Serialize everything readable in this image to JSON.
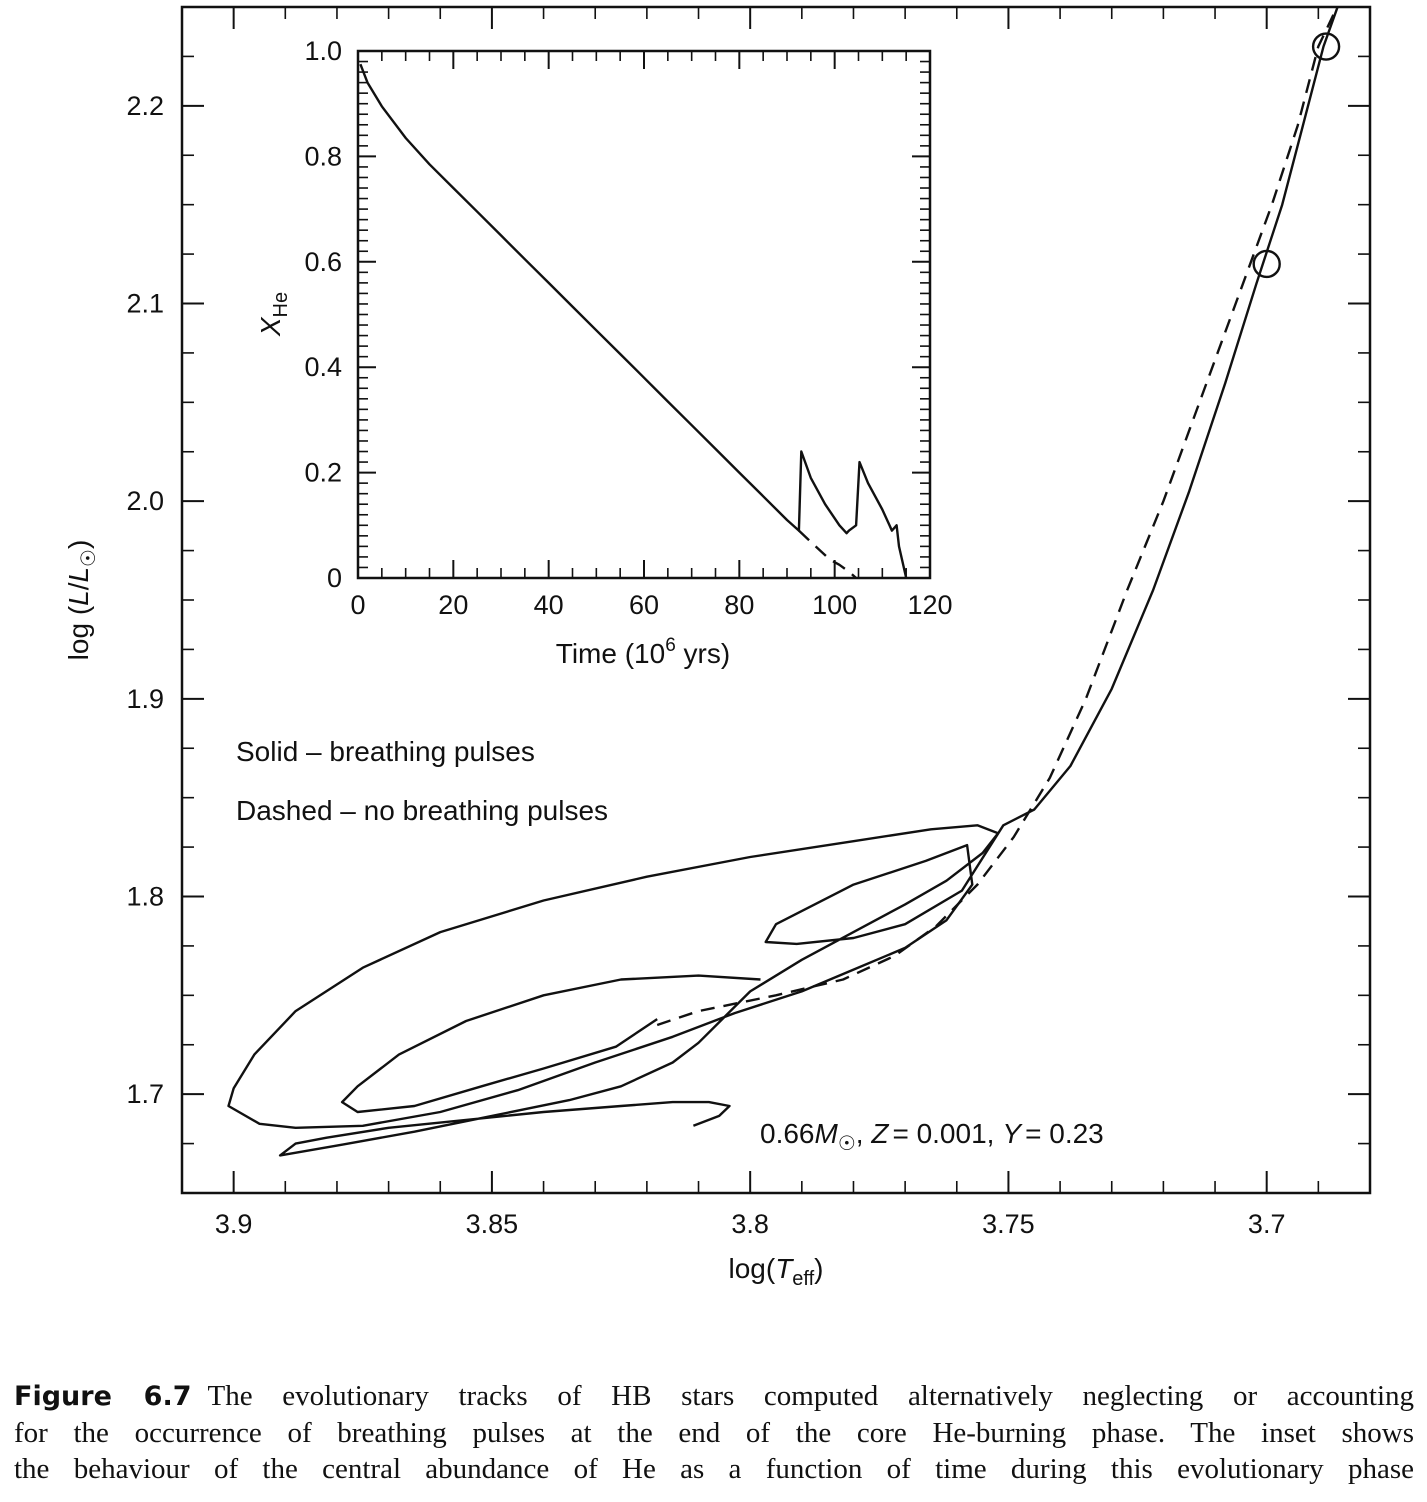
{
  "chart_data": [
    {
      "type": "line",
      "name": "hr-diagram",
      "xlabel": "log(Teff)",
      "ylabel": "log (L/L☉)",
      "xlim": [
        3.91,
        3.68
      ],
      "ylim": [
        1.65,
        2.25
      ],
      "x_reversed": true,
      "x_ticks": [
        3.9,
        3.85,
        3.8,
        3.75,
        3.7
      ],
      "x_tick_labels": [
        "3.9",
        "3.85",
        "3.8",
        "3.75",
        "3.7"
      ],
      "y_ticks": [
        1.7,
        1.8,
        1.9,
        2.0,
        2.1,
        2.2
      ],
      "y_tick_labels": [
        "1.7",
        "1.8",
        "1.9",
        "2.0",
        "2.1",
        "2.2"
      ],
      "legend": {
        "placement": "left-middle",
        "solid": "Solid – breathing pulses",
        "dashed": "Dashed – no breathing pulses"
      },
      "annotation": {
        "mass": "0.66",
        "mass_unit": "M",
        "z_label": "Z",
        "z_value": "= 0.001,",
        "y_label": "Y",
        "y_value": "= 0.23"
      },
      "markers": [
        {
          "x": 3.7,
          "y": 2.12
        },
        {
          "x": 3.6885,
          "y": 2.23
        }
      ],
      "series": [
        {
          "style": "solid",
          "points": [
            [
              3.811,
              1.684
            ],
            [
              3.806,
              1.689
            ],
            [
              3.804,
              1.694
            ],
            [
              3.808,
              1.696
            ],
            [
              3.815,
              1.696
            ],
            [
              3.825,
              1.694
            ],
            [
              3.84,
              1.691
            ],
            [
              3.855,
              1.687
            ],
            [
              3.87,
              1.683
            ],
            [
              3.882,
              1.678
            ],
            [
              3.888,
              1.675
            ],
            [
              3.891,
              1.669
            ],
            [
              3.88,
              1.674
            ],
            [
              3.865,
              1.681
            ],
            [
              3.85,
              1.689
            ],
            [
              3.835,
              1.697
            ],
            [
              3.825,
              1.704
            ],
            [
              3.815,
              1.716
            ],
            [
              3.81,
              1.726
            ],
            [
              3.805,
              1.739
            ],
            [
              3.8,
              1.752
            ],
            [
              3.79,
              1.768
            ],
            [
              3.78,
              1.782
            ],
            [
              3.77,
              1.796
            ],
            [
              3.762,
              1.808
            ],
            [
              3.755,
              1.822
            ],
            [
              3.752,
              1.832
            ],
            [
              3.756,
              1.836
            ],
            [
              3.765,
              1.834
            ],
            [
              3.78,
              1.828
            ],
            [
              3.8,
              1.82
            ],
            [
              3.82,
              1.81
            ],
            [
              3.84,
              1.798
            ],
            [
              3.86,
              1.782
            ],
            [
              3.875,
              1.764
            ],
            [
              3.888,
              1.742
            ],
            [
              3.896,
              1.72
            ],
            [
              3.9,
              1.703
            ],
            [
              3.901,
              1.694
            ],
            [
              3.895,
              1.685
            ],
            [
              3.888,
              1.683
            ],
            [
              3.875,
              1.684
            ],
            [
              3.86,
              1.691
            ],
            [
              3.845,
              1.702
            ],
            [
              3.83,
              1.716
            ],
            [
              3.815,
              1.729
            ],
            [
              3.803,
              1.741
            ],
            [
              3.79,
              1.752
            ],
            [
              3.78,
              1.763
            ],
            [
              3.77,
              1.774
            ],
            [
              3.762,
              1.788
            ],
            [
              3.757,
              1.806
            ],
            [
              3.758,
              1.826
            ],
            [
              3.766,
              1.818
            ],
            [
              3.78,
              1.806
            ],
            [
              3.795,
              1.786
            ],
            [
              3.797,
              1.777
            ],
            [
              3.791,
              1.776
            ],
            [
              3.78,
              1.779
            ],
            [
              3.77,
              1.786
            ],
            [
              3.759,
              1.803
            ],
            [
              3.751,
              1.836
            ],
            [
              3.745,
              1.844
            ],
            [
              3.738,
              1.866
            ],
            [
              3.73,
              1.905
            ],
            [
              3.722,
              1.955
            ],
            [
              3.715,
              2.005
            ],
            [
              3.708,
              2.06
            ],
            [
              3.702,
              2.11
            ],
            [
              3.697,
              2.15
            ],
            [
              3.693,
              2.19
            ],
            [
              3.689,
              2.23
            ],
            [
              3.686,
              2.252
            ]
          ]
        },
        {
          "style": "solid",
          "points": [
            [
              3.798,
              1.758
            ],
            [
              3.81,
              1.76
            ],
            [
              3.825,
              1.758
            ],
            [
              3.84,
              1.75
            ],
            [
              3.855,
              1.737
            ],
            [
              3.868,
              1.72
            ],
            [
              3.876,
              1.704
            ],
            [
              3.879,
              1.696
            ],
            [
              3.876,
              1.691
            ],
            [
              3.865,
              1.694
            ],
            [
              3.852,
              1.704
            ],
            [
              3.84,
              1.713
            ],
            [
              3.826,
              1.724
            ],
            [
              3.818,
              1.738
            ]
          ]
        },
        {
          "style": "dashed",
          "points": [
            [
              3.818,
              1.735
            ],
            [
              3.81,
              1.742
            ],
            [
              3.795,
              1.75
            ],
            [
              3.782,
              1.758
            ],
            [
              3.772,
              1.77
            ],
            [
              3.764,
              1.785
            ],
            [
              3.756,
              1.806
            ],
            [
              3.749,
              1.83
            ],
            [
              3.742,
              1.86
            ],
            [
              3.735,
              1.9
            ],
            [
              3.727,
              1.955
            ],
            [
              3.72,
              2.0
            ],
            [
              3.713,
              2.05
            ],
            [
              3.706,
              2.1
            ],
            [
              3.699,
              2.15
            ],
            [
              3.694,
              2.19
            ],
            [
              3.69,
              2.23
            ],
            [
              3.686,
              2.252
            ]
          ]
        }
      ]
    },
    {
      "type": "line",
      "name": "inset",
      "xlabel": "Time (10",
      "xlabel_sup": "6",
      "xlabel_tail": " yrs)",
      "ylabel": "X",
      "ylabel_sub": "He",
      "xlim": [
        0,
        120
      ],
      "ylim": [
        0,
        1.0
      ],
      "x_ticks": [
        0,
        20,
        40,
        60,
        80,
        100,
        120
      ],
      "x_tick_labels": [
        "0",
        "20",
        "40",
        "60",
        "80",
        "100",
        "120"
      ],
      "y_ticks": [
        0,
        0.2,
        0.4,
        0.6,
        0.8,
        1.0
      ],
      "y_tick_labels": [
        "0",
        "0.2",
        "0.4",
        "0.6",
        "0.8",
        "1.0"
      ],
      "series": [
        {
          "style": "solid",
          "points": [
            [
              0.5,
              0.975
            ],
            [
              2,
              0.94
            ],
            [
              5,
              0.895
            ],
            [
              10,
              0.835
            ],
            [
              15,
              0.785
            ],
            [
              20,
              0.74
            ],
            [
              25,
              0.695
            ],
            [
              30,
              0.65
            ],
            [
              35,
              0.605
            ],
            [
              40,
              0.56
            ],
            [
              45,
              0.515
            ],
            [
              50,
              0.47
            ],
            [
              55,
              0.425
            ],
            [
              60,
              0.38
            ],
            [
              65,
              0.335
            ],
            [
              70,
              0.29
            ],
            [
              75,
              0.245
            ],
            [
              80,
              0.2
            ],
            [
              85,
              0.155
            ],
            [
              90,
              0.11
            ],
            [
              92.5,
              0.09
            ],
            [
              93,
              0.24
            ],
            [
              95,
              0.19
            ],
            [
              98,
              0.14
            ],
            [
              101,
              0.1
            ],
            [
              102.5,
              0.085
            ],
            [
              103,
              0.09
            ],
            [
              104.5,
              0.1
            ],
            [
              105.2,
              0.22
            ],
            [
              107,
              0.18
            ],
            [
              110,
              0.13
            ],
            [
              111.5,
              0.1
            ],
            [
              112,
              0.09
            ],
            [
              112.5,
              0.095
            ],
            [
              113,
              0.1
            ],
            [
              113.5,
              0.06
            ],
            [
              115,
              0.0
            ]
          ]
        },
        {
          "style": "dashed",
          "points": [
            [
              92.5,
              0.09
            ],
            [
              96,
              0.06
            ],
            [
              99,
              0.035
            ],
            [
              101,
              0.025
            ],
            [
              103,
              0.012
            ],
            [
              104.5,
              0.0
            ]
          ]
        }
      ]
    }
  ],
  "caption": {
    "label": "Figure 6.7",
    "lines": [
      "The evolutionary tracks of HB stars computed alternatively neglecting or accounting",
      "for the occurrence of breathing pulses at the end of the core He-burning phase. The inset shows",
      "the behaviour of the central abundance of He as a function of time during this evolutionary phase"
    ]
  }
}
